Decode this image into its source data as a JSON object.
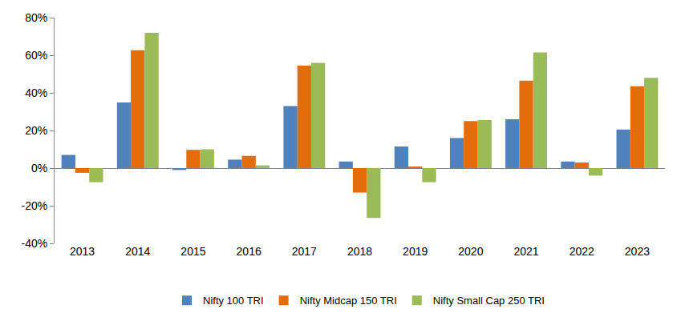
{
  "chart_data": {
    "type": "bar",
    "categories": [
      "2013",
      "2014",
      "2015",
      "2016",
      "2017",
      "2018",
      "2019",
      "2020",
      "2021",
      "2022",
      "2023"
    ],
    "series": [
      {
        "name": "Nifty 100 TRI",
        "color": "#4f81bd",
        "values": [
          7,
          34.9,
          -1,
          4.5,
          33,
          3.5,
          11.5,
          16,
          26,
          3.5,
          20.5
        ]
      },
      {
        "name": "Nifty Midcap 150 TRI",
        "color": "#e46c0a",
        "values": [
          -2.5,
          62.7,
          9.7,
          6.5,
          54.5,
          -13,
          0.5,
          25,
          46.5,
          3,
          43.5
        ]
      },
      {
        "name": "Nifty Small Cap 250 TRI",
        "color": "#9bbb59",
        "values": [
          -7.5,
          71.9,
          10,
          1.5,
          56,
          -26.5,
          -7.5,
          25.5,
          61.5,
          -4,
          48
        ]
      }
    ],
    "ylim": [
      -40,
      80
    ],
    "yticks": [
      {
        "value": -40,
        "label": "-40%"
      },
      {
        "value": -20,
        "label": "-20%"
      },
      {
        "value": 0,
        "label": "0%"
      },
      {
        "value": 20,
        "label": "20%"
      },
      {
        "value": 40,
        "label": "40%"
      },
      {
        "value": 60,
        "label": "60%"
      },
      {
        "value": 80,
        "label": "80%"
      }
    ],
    "grid": false,
    "legend": "bottom"
  }
}
